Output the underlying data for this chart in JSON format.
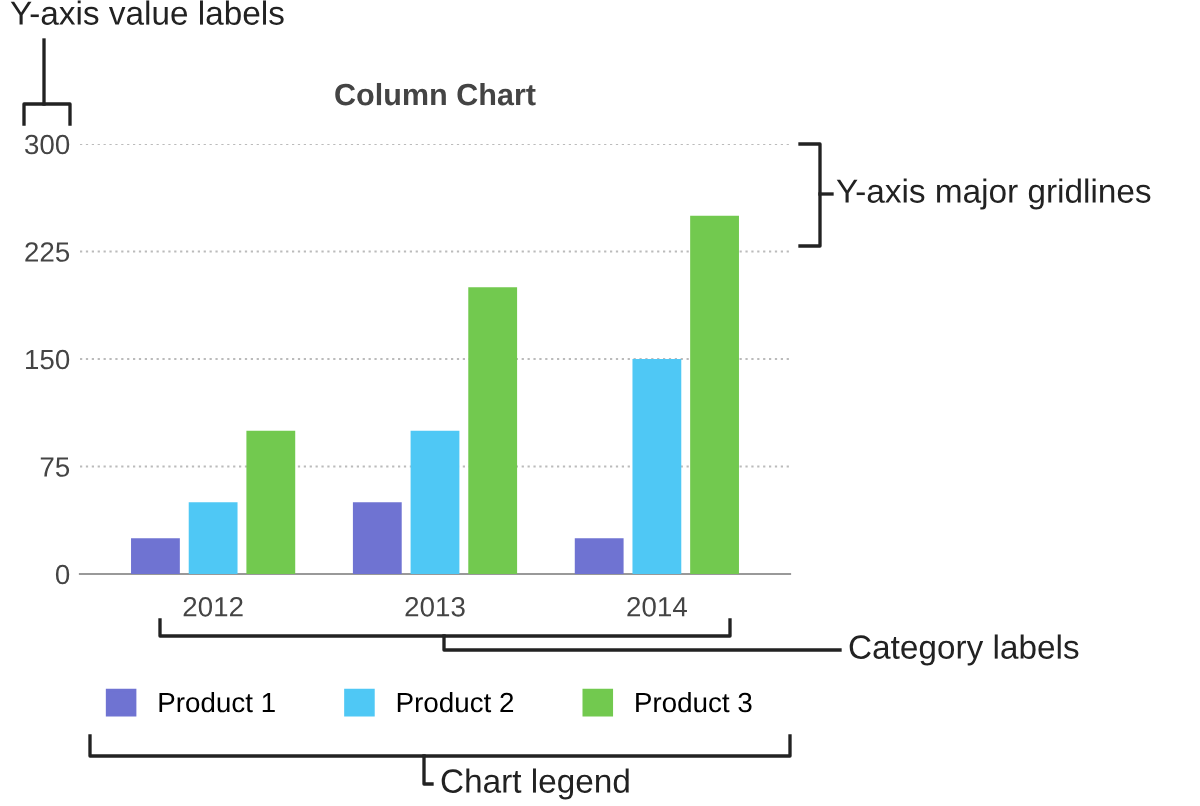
{
  "chart_data": {
    "type": "bar",
    "title": "Column Chart",
    "categories": [
      "2012",
      "2013",
      "2014"
    ],
    "series": [
      {
        "name": "Product 1",
        "color": "#6f73d2",
        "values": [
          25,
          50,
          25
        ]
      },
      {
        "name": "Product 2",
        "color": "#4fc8f5",
        "values": [
          50,
          100,
          150
        ]
      },
      {
        "name": "Product 3",
        "color": "#72c94f",
        "values": [
          100,
          200,
          250
        ]
      }
    ],
    "ylim": [
      0,
      300
    ],
    "yticks": [
      0,
      75,
      150,
      225,
      300
    ],
    "grid": "y",
    "line_style": "dotted",
    "legend": "bottom",
    "annotations": [
      "Y-axis value labels",
      "Y-axis major gridlines",
      "Category labels",
      "Chart legend"
    ]
  }
}
